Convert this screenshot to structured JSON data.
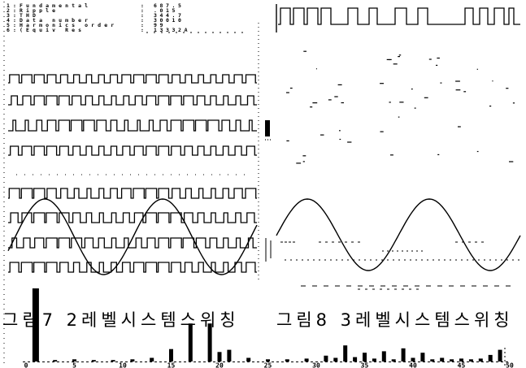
{
  "readout": {
    "separator": ":",
    "items": [
      {
        "label": "1:Fundamental",
        "value": "687.5"
      },
      {
        "label": "2:Ripple",
        "value": ".015"
      },
      {
        "label": "3:THD",
        "value": "344.7"
      },
      {
        "label": "4:Data number",
        "value": "30010"
      },
      {
        "label": "5:Harmonics order",
        "value": "99"
      },
      {
        "label": "6:(Equiv Res",
        "value": "13332A"
      }
    ]
  },
  "figures": [
    {
      "caption": "그림7 2레벨시스템스위칭"
    },
    {
      "caption": "그림8 3레벨시스템스위칭"
    }
  ],
  "spectrum": {
    "x_tick_labels": [
      "0",
      "5",
      "10",
      "15",
      "20",
      "25",
      "30",
      "35",
      "40",
      "45",
      "50"
    ],
    "bars": [
      {
        "order": 1,
        "magnitude": 1.0
      },
      {
        "order": 3,
        "magnitude": 0.02
      },
      {
        "order": 5,
        "magnitude": 0.03
      },
      {
        "order": 7,
        "magnitude": 0.02
      },
      {
        "order": 9,
        "magnitude": 0.02
      },
      {
        "order": 11,
        "magnitude": 0.03
      },
      {
        "order": 13,
        "magnitude": 0.05
      },
      {
        "order": 15,
        "magnitude": 0.17
      },
      {
        "order": 17,
        "magnitude": 0.52
      },
      {
        "order": 19,
        "magnitude": 0.52
      },
      {
        "order": 20,
        "magnitude": 0.13
      },
      {
        "order": 21,
        "magnitude": 0.16
      },
      {
        "order": 23,
        "magnitude": 0.05
      },
      {
        "order": 25,
        "magnitude": 0.03
      },
      {
        "order": 27,
        "magnitude": 0.03
      },
      {
        "order": 29,
        "magnitude": 0.04
      },
      {
        "order": 31,
        "magnitude": 0.08
      },
      {
        "order": 32,
        "magnitude": 0.05
      },
      {
        "order": 33,
        "magnitude": 0.22
      },
      {
        "order": 34,
        "magnitude": 0.06
      },
      {
        "order": 35,
        "magnitude": 0.12
      },
      {
        "order": 36,
        "magnitude": 0.04
      },
      {
        "order": 37,
        "magnitude": 0.14
      },
      {
        "order": 38,
        "magnitude": 0.03
      },
      {
        "order": 39,
        "magnitude": 0.18
      },
      {
        "order": 40,
        "magnitude": 0.05
      },
      {
        "order": 41,
        "magnitude": 0.12
      },
      {
        "order": 42,
        "magnitude": 0.03
      },
      {
        "order": 43,
        "magnitude": 0.05
      },
      {
        "order": 44,
        "magnitude": 0.03
      },
      {
        "order": 45,
        "magnitude": 0.04
      },
      {
        "order": 46,
        "magnitude": 0.03
      },
      {
        "order": 47,
        "magnitude": 0.04
      },
      {
        "order": 48,
        "magnitude": 0.09
      },
      {
        "order": 49,
        "magnitude": 0.16
      }
    ]
  },
  "colors": {
    "ink": "#000000",
    "paper": "#ffffff"
  }
}
